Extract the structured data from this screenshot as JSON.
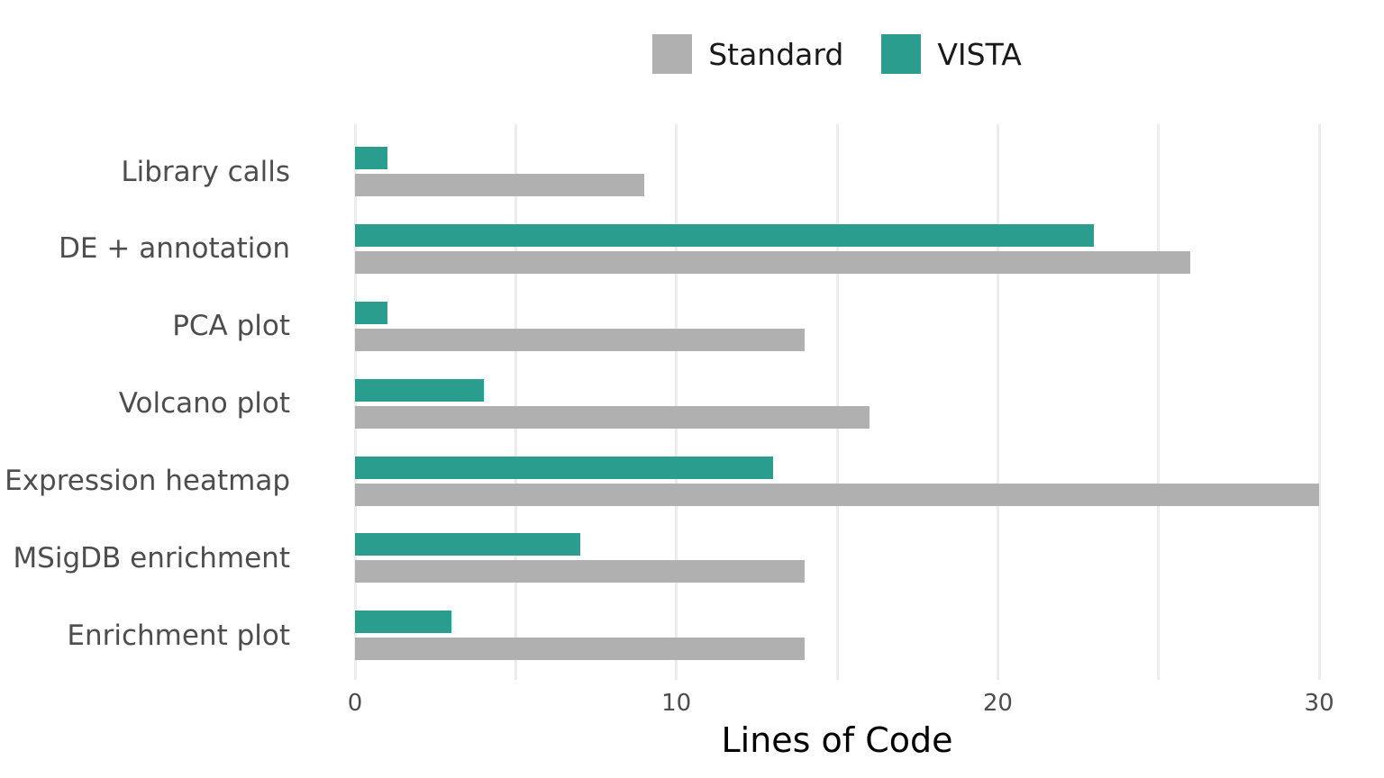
{
  "chart_data": {
    "type": "bar",
    "orientation": "horizontal",
    "title": "",
    "xlabel": "Lines of Code",
    "ylabel": "",
    "categories": [
      "Library calls",
      "DE + annotation",
      "PCA plot",
      "Volcano plot",
      "Expression heatmap",
      "MSigDB enrichment",
      "Enrichment plot"
    ],
    "series": [
      {
        "name": "VISTA",
        "color": "#2a9d8f",
        "values": [
          1,
          23,
          1,
          4,
          13,
          7,
          3
        ]
      },
      {
        "name": "Standard",
        "color": "#b0b0b0",
        "values": [
          9,
          26,
          14,
          16,
          30,
          14,
          14
        ]
      }
    ],
    "legend": {
      "position": "top-center",
      "entries": [
        "Standard",
        "VISTA"
      ]
    },
    "x_axis": {
      "min": 0,
      "max": 30,
      "ticks": [
        0,
        10,
        20,
        30
      ],
      "gridlines": [
        0,
        5,
        10,
        15,
        20,
        25,
        30
      ]
    },
    "grid": "vertical-only",
    "colors": {
      "vista": "#2a9d8f",
      "standard": "#b0b0b0",
      "gridline": "#ececec",
      "axis_text": "#4d4d4d",
      "legend_text": "#1a1a1a",
      "axis_title": "#000000"
    }
  }
}
